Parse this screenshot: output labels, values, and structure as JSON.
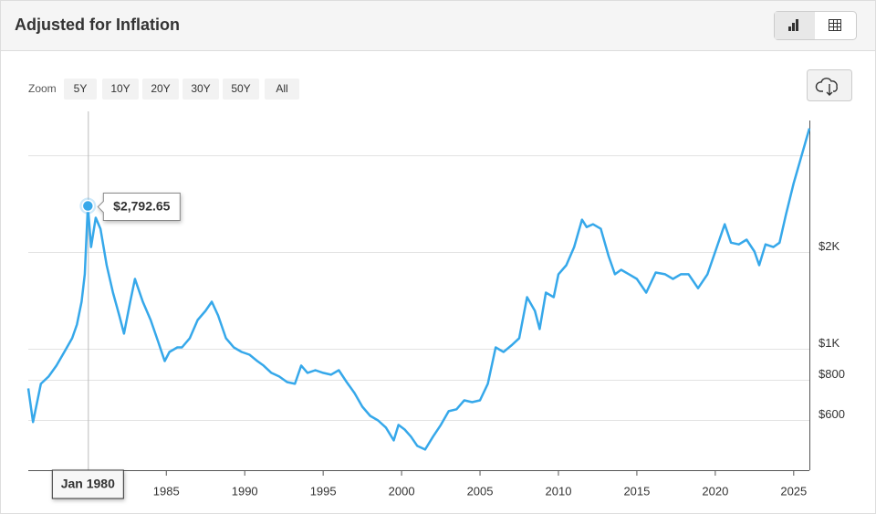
{
  "header": {
    "title": "Adjusted for Inflation"
  },
  "zoom": {
    "label": "Zoom",
    "buttons": [
      "5Y",
      "10Y",
      "20Y",
      "30Y",
      "50Y",
      "All"
    ]
  },
  "chart_data": {
    "type": "line",
    "log_scale": true,
    "grid": true,
    "x": [
      1976.2,
      1976.5,
      1977,
      1977.5,
      1978,
      1978.5,
      1979,
      1979.3,
      1979.6,
      1979.8,
      1980.0,
      1980.2,
      1980.5,
      1980.8,
      1981.2,
      1981.6,
      1982,
      1982.3,
      1982.7,
      1983,
      1983.5,
      1984,
      1984.5,
      1984.9,
      1985.2,
      1985.7,
      1986,
      1986.5,
      1987,
      1987.5,
      1987.9,
      1988.3,
      1988.8,
      1989.3,
      1989.8,
      1990.3,
      1990.8,
      1991.2,
      1991.7,
      1992.2,
      1992.7,
      1993.2,
      1993.6,
      1994,
      1994.5,
      1995,
      1995.5,
      1996,
      1996.5,
      1997,
      1997.5,
      1998,
      1998.5,
      1999,
      1999.5,
      1999.8,
      2000.2,
      2000.6,
      2001,
      2001.5,
      2002,
      2002.5,
      2003,
      2003.5,
      2004,
      2004.5,
      2005,
      2005.5,
      2006,
      2006.5,
      2007,
      2007.5,
      2008,
      2008.5,
      2008.8,
      2009.2,
      2009.7,
      2010,
      2010.5,
      2011,
      2011.5,
      2011.8,
      2012.2,
      2012.7,
      2013.2,
      2013.6,
      2014,
      2014.5,
      2015,
      2015.6,
      2016.2,
      2016.8,
      2017.3,
      2017.8,
      2018.3,
      2018.9,
      2019.5,
      2020,
      2020.6,
      2021,
      2021.5,
      2022,
      2022.5,
      2022.8,
      2023.2,
      2023.7,
      2024.1,
      2024.5,
      2025,
      2025.5,
      2026.0
    ],
    "series": [
      {
        "name": "Adjusted for Inflation",
        "color": "#36a8ea",
        "values": [
          755,
          593,
          780,
          822,
          889,
          980,
          1082,
          1193,
          1405,
          1711,
          2792.65,
          2080,
          2566,
          2371,
          1825,
          1500,
          1274,
          1118,
          1405,
          1655,
          1405,
          1233,
          1047,
          918,
          980,
          1013,
          1013,
          1082,
          1233,
          1316,
          1405,
          1274,
          1082,
          1013,
          980,
          961,
          918,
          889,
          844,
          822,
          790,
          780,
          889,
          844,
          860,
          844,
          833,
          860,
          790,
          730,
          662,
          620,
          600,
          570,
          520,
          581,
          562,
          534,
          500,
          487,
          534,
          581,
          641,
          650,
          693,
          684,
          693,
          780,
          1013,
          980,
          1027,
          1082,
          1452,
          1316,
          1155,
          1500,
          1452,
          1711,
          1825,
          2080,
          2530,
          2400,
          2450,
          2371,
          1948,
          1711,
          1767,
          1711,
          1655,
          1500,
          1732,
          1711,
          1655,
          1711,
          1711,
          1548,
          1711,
          2014,
          2450,
          2146,
          2120,
          2193,
          2014,
          1825,
          2120,
          2080,
          2146,
          2616,
          3288,
          4000,
          4870
        ]
      }
    ],
    "xlim": [
      1976.2,
      2026.0
    ],
    "xticks": [
      1985,
      1990,
      1995,
      2000,
      2005,
      2010,
      2015,
      2020,
      2025
    ],
    "ylim": [
      420,
      5500
    ],
    "yticks": [
      {
        "value": 600,
        "label": "$600"
      },
      {
        "value": 800,
        "label": "$800"
      },
      {
        "value": 1000,
        "label": "$1K"
      },
      {
        "value": 2000,
        "label": "$2K"
      },
      {
        "value": 4000,
        "label": null
      }
    ],
    "tooltip": {
      "index": 10,
      "x_label": "Jan 1980",
      "value_label": "$2,792.65"
    }
  }
}
